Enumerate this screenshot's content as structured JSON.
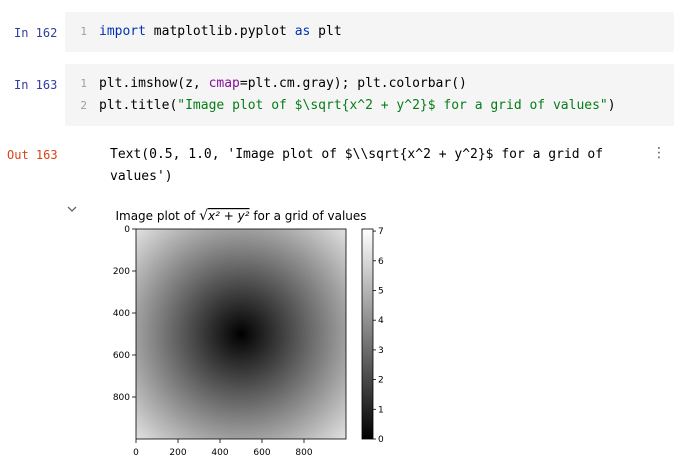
{
  "cells": [
    {
      "prompt": "In 162",
      "lines": [
        {
          "num": "1",
          "kw": "import",
          "rest1": " matplotlib.pyplot ",
          "kw2": "as",
          "rest2": " plt"
        }
      ]
    },
    {
      "prompt": "In 163",
      "lines": [
        {
          "num": "1",
          "pre": "plt.imshow(z, ",
          "param": "cmap",
          "post": "=plt.cm.gray); plt.colorbar()"
        },
        {
          "num": "2",
          "pre": "plt.title(",
          "str": "\"Image plot of $\\sqrt{x^2 + y^2}$ for a grid of values\"",
          "post": ")"
        }
      ]
    }
  ],
  "output": {
    "prompt": "Out 163",
    "text": "Text(0.5, 1.0, 'Image plot of $\\\\sqrt{x^2 + y^2}$ for a grid of\nvalues')"
  },
  "icons": {
    "menu": "more-vertical-icon",
    "collapse": "chevron-down-icon"
  },
  "chart_data": {
    "type": "heatmap",
    "title_prefix": "Image plot of ",
    "title_math": "x² + y²",
    "title_suffix": " for a grid of values",
    "colormap": "gray",
    "xticks": [
      0,
      200,
      400,
      600,
      800
    ],
    "yticks": [
      0,
      200,
      400,
      600,
      800
    ],
    "xlim": [
      0,
      1000
    ],
    "ylim": [
      1000,
      0
    ],
    "colorbar": {
      "ticks": [
        0,
        1,
        2,
        3,
        4,
        5,
        6,
        7
      ],
      "range": [
        0,
        7.07
      ]
    }
  }
}
